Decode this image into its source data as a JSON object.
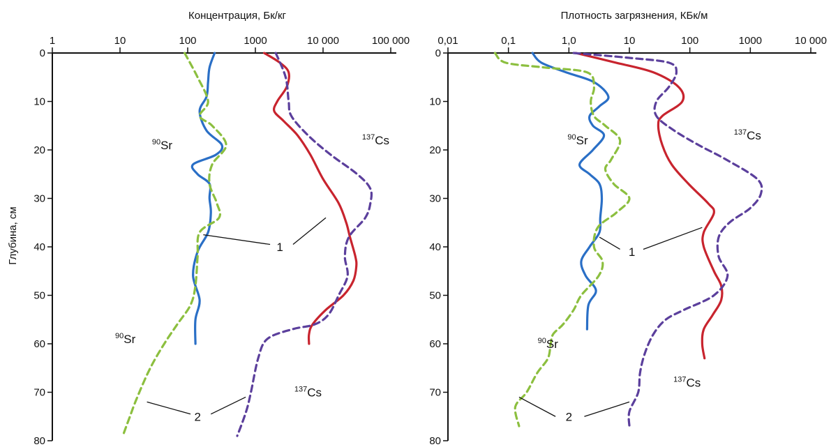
{
  "colors": {
    "sr_solid": "#2a6fc6",
    "sr_dashed": "#8cbf3f",
    "cs_solid": "#c8242e",
    "cs_dashed": "#5b3f9c",
    "axis": "#111111"
  },
  "ylabel": "Глубина, см",
  "chart_data": [
    {
      "type": "line",
      "title": "",
      "xlabel": "Концентрация, Бк/кг",
      "ylabel": "Глубина, см",
      "x_scale": "log",
      "xlim": [
        1,
        100000
      ],
      "ylim": [
        0,
        80
      ],
      "x_ticks": [
        1,
        10,
        100,
        1000,
        10000,
        100000
      ],
      "x_tick_labels": [
        "1",
        "10",
        "100",
        "1000",
        "10 000",
        "100 000"
      ],
      "y_ticks": [
        0,
        10,
        20,
        30,
        40,
        50,
        60,
        70,
        80
      ],
      "y_tick_labels": [
        "0",
        "10",
        "20",
        "30",
        "40",
        "50",
        "60",
        "70",
        "80"
      ],
      "series": [
        {
          "name": "",
          "role": "sr_solid",
          "dashed": false,
          "points": [
            [
              250,
              0
            ],
            [
              210,
              3
            ],
            [
              200,
              6
            ],
            [
              190,
              9
            ],
            [
              150,
              12
            ],
            [
              190,
              16
            ],
            [
              320,
              19
            ],
            [
              260,
              21
            ],
            [
              120,
              23
            ],
            [
              140,
              25
            ],
            [
              210,
              27
            ],
            [
              210,
              30
            ],
            [
              220,
              33
            ],
            [
              200,
              37
            ],
            [
              140,
              41
            ],
            [
              120,
              46
            ],
            [
              150,
              51
            ],
            [
              130,
              55
            ],
            [
              130,
              60
            ]
          ]
        },
        {
          "name": "",
          "role": "sr_dashed",
          "dashed": false,
          "points": [
            [
              90,
              0
            ],
            [
              140,
              5
            ],
            [
              200,
              10
            ],
            [
              150,
              13
            ],
            [
              230,
              15
            ],
            [
              370,
              19
            ],
            [
              230,
              23
            ],
            [
              210,
              27
            ],
            [
              270,
              31
            ],
            [
              290,
              34
            ],
            [
              150,
              37
            ],
            [
              140,
              42
            ],
            [
              130,
              48
            ],
            [
              110,
              52
            ],
            [
              70,
              56
            ],
            [
              45,
              60
            ],
            [
              28,
              65
            ],
            [
              18,
              71
            ],
            [
              14,
              75
            ],
            [
              11,
              79
            ]
          ]
        },
        {
          "name": "",
          "role": "cs_solid",
          "dashed": false,
          "points": [
            [
              1350,
              0
            ],
            [
              2300,
              2
            ],
            [
              3100,
              4
            ],
            [
              2900,
              7
            ],
            [
              2100,
              10
            ],
            [
              1900,
              12
            ],
            [
              2600,
              14
            ],
            [
              4200,
              17
            ],
            [
              6500,
              21
            ],
            [
              10000,
              26
            ],
            [
              17000,
              31
            ],
            [
              22000,
              35
            ],
            [
              25000,
              38
            ],
            [
              30000,
              42
            ],
            [
              31000,
              44
            ],
            [
              28000,
              47
            ],
            [
              20000,
              50
            ],
            [
              11000,
              53
            ],
            [
              7000,
              56
            ],
            [
              6200,
              58
            ],
            [
              6200,
              60
            ]
          ]
        },
        {
          "name": "",
          "role": "cs_dashed",
          "dashed": true,
          "points": [
            [
              2000,
              0
            ],
            [
              2800,
              5
            ],
            [
              3100,
              10
            ],
            [
              3400,
              13
            ],
            [
              6000,
              17
            ],
            [
              13000,
              21
            ],
            [
              32000,
              25
            ],
            [
              50000,
              28
            ],
            [
              50000,
              31
            ],
            [
              42000,
              34
            ],
            [
              24000,
              38
            ],
            [
              21000,
              42
            ],
            [
              23000,
              46
            ],
            [
              17000,
              50
            ],
            [
              12000,
              54
            ],
            [
              7500,
              56
            ],
            [
              3500,
              57
            ],
            [
              1500,
              59
            ],
            [
              1100,
              63
            ],
            [
              860,
              70
            ],
            [
              730,
              74
            ],
            [
              540,
              79
            ]
          ]
        }
      ],
      "annotations": [
        {
          "text": "90",
          "sup": true,
          "label": "Sr",
          "at": [
            42,
            19
          ]
        },
        {
          "text": "137",
          "sup": true,
          "label": "Cs",
          "at": [
            60000,
            18
          ]
        },
        {
          "text": "1",
          "at": [
            2300,
            40
          ]
        },
        {
          "text": "90",
          "sup": true,
          "label": "Sr",
          "at": [
            12,
            59
          ]
        },
        {
          "text": "137",
          "sup": true,
          "label": "Cs",
          "at": [
            6000,
            70
          ]
        },
        {
          "text": "2",
          "at": [
            140,
            75
          ]
        }
      ],
      "leaders": [
        {
          "from": [
            1650,
            39.5
          ],
          "to": [
            170,
            37.5
          ]
        },
        {
          "from": [
            3600,
            39.5
          ],
          "to": [
            11000,
            34
          ]
        },
        {
          "from": [
            110,
            74.5
          ],
          "to": [
            25,
            72
          ]
        },
        {
          "from": [
            220,
            74.5
          ],
          "to": [
            720,
            71
          ]
        }
      ]
    },
    {
      "type": "line",
      "title": "",
      "xlabel": "Плотность загрязнения, КБк/м",
      "ylabel": "",
      "x_scale": "log",
      "xlim": [
        0.01,
        10000
      ],
      "ylim": [
        0,
        80
      ],
      "x_ticks": [
        0.01,
        0.1,
        1,
        10,
        100,
        1000,
        10000
      ],
      "x_tick_labels": [
        "0,01",
        "0,1",
        "1,0",
        "10",
        "100",
        "1000",
        "10 000"
      ],
      "y_ticks": [
        0,
        10,
        20,
        30,
        40,
        50,
        60,
        70,
        80
      ],
      "y_tick_labels": [
        "0",
        "10",
        "20",
        "30",
        "40",
        "50",
        "60",
        "70",
        "80"
      ],
      "series": [
        {
          "name": "",
          "role": "sr_solid",
          "dashed": false,
          "points": [
            [
              0.25,
              0
            ],
            [
              0.35,
              2
            ],
            [
              0.9,
              4
            ],
            [
              2.6,
              6
            ],
            [
              4.5,
              9
            ],
            [
              3.2,
              11
            ],
            [
              2.2,
              13
            ],
            [
              2.5,
              15
            ],
            [
              3.8,
              17
            ],
            [
              2.5,
              20
            ],
            [
              1.5,
              23
            ],
            [
              2.2,
              25
            ],
            [
              3.2,
              27
            ],
            [
              3.5,
              30
            ],
            [
              3.3,
              34
            ],
            [
              3.2,
              37
            ],
            [
              2.2,
              40
            ],
            [
              1.6,
              43
            ],
            [
              1.9,
              46
            ],
            [
              2.8,
              49
            ],
            [
              2.1,
              52
            ],
            [
              2.0,
              57
            ]
          ]
        },
        {
          "name": "",
          "role": "sr_dashed",
          "dashed": false,
          "points": [
            [
              0.06,
              0
            ],
            [
              0.09,
              2
            ],
            [
              0.4,
              3
            ],
            [
              2.0,
              4
            ],
            [
              2.6,
              7
            ],
            [
              2.3,
              10
            ],
            [
              2.6,
              13
            ],
            [
              4.0,
              15
            ],
            [
              7.0,
              18
            ],
            [
              5.0,
              22
            ],
            [
              4.0,
              24
            ],
            [
              5.5,
              27
            ],
            [
              10.0,
              30
            ],
            [
              6.0,
              33
            ],
            [
              3.0,
              36
            ],
            [
              2.6,
              40
            ],
            [
              3.6,
              43
            ],
            [
              3.1,
              46
            ],
            [
              1.6,
              50
            ],
            [
              1.2,
              53
            ],
            [
              0.8,
              56
            ],
            [
              0.55,
              58
            ],
            [
              0.5,
              60
            ],
            [
              0.45,
              63
            ],
            [
              0.3,
              66
            ],
            [
              0.2,
              70
            ],
            [
              0.13,
              73
            ],
            [
              0.15,
              77
            ]
          ]
        },
        {
          "name": "",
          "role": "cs_solid",
          "dashed": false,
          "points": [
            [
              1.3,
              0
            ],
            [
              6,
              2
            ],
            [
              25,
              4
            ],
            [
              65,
              7
            ],
            [
              75,
              10
            ],
            [
              35,
              13
            ],
            [
              30,
              15
            ],
            [
              35,
              19
            ],
            [
              50,
              23
            ],
            [
              95,
              27
            ],
            [
              200,
              31
            ],
            [
              250,
              33
            ],
            [
              170,
              37
            ],
            [
              170,
              40
            ],
            [
              250,
              45
            ],
            [
              330,
              48
            ],
            [
              330,
              51
            ],
            [
              240,
              54
            ],
            [
              170,
              57
            ],
            [
              160,
              60
            ],
            [
              175,
              63
            ]
          ]
        },
        {
          "name": "",
          "role": "cs_dashed",
          "dashed": true,
          "points": [
            [
              1.2,
              0
            ],
            [
              10,
              1
            ],
            [
              45,
              2
            ],
            [
              60,
              4
            ],
            [
              45,
              7
            ],
            [
              28,
              10
            ],
            [
              28,
              13
            ],
            [
              55,
              16
            ],
            [
              140,
              19
            ],
            [
              400,
              22
            ],
            [
              1300,
              26
            ],
            [
              1500,
              29
            ],
            [
              1000,
              32
            ],
            [
              450,
              35
            ],
            [
              300,
              38
            ],
            [
              300,
              42
            ],
            [
              420,
              46
            ],
            [
              250,
              50
            ],
            [
              80,
              53
            ],
            [
              40,
              55
            ],
            [
              25,
              58
            ],
            [
              18,
              62
            ],
            [
              15,
              66
            ],
            [
              14,
              70
            ],
            [
              10,
              74
            ],
            [
              10,
              77
            ]
          ]
        }
      ],
      "annotations": [
        {
          "text": "90",
          "sup": true,
          "label": "Sr",
          "at": [
            1.4,
            18
          ]
        },
        {
          "text": "137",
          "sup": true,
          "label": "Cs",
          "at": [
            900,
            17
          ]
        },
        {
          "text": "1",
          "at": [
            11,
            41
          ]
        },
        {
          "text": "90",
          "sup": true,
          "label": "Sr",
          "at": [
            0.45,
            60
          ]
        },
        {
          "text": "137",
          "sup": true,
          "label": "Cs",
          "at": [
            90,
            68
          ]
        },
        {
          "text": "2",
          "at": [
            1.0,
            75
          ]
        }
      ],
      "leaders": [
        {
          "from": [
            7,
            40.5
          ],
          "to": [
            3.2,
            38
          ]
        },
        {
          "from": [
            17,
            40.5
          ],
          "to": [
            160,
            36
          ]
        },
        {
          "from": [
            0.6,
            75
          ],
          "to": [
            0.15,
            71
          ]
        },
        {
          "from": [
            1.8,
            75
          ],
          "to": [
            10,
            72
          ]
        }
      ]
    }
  ]
}
